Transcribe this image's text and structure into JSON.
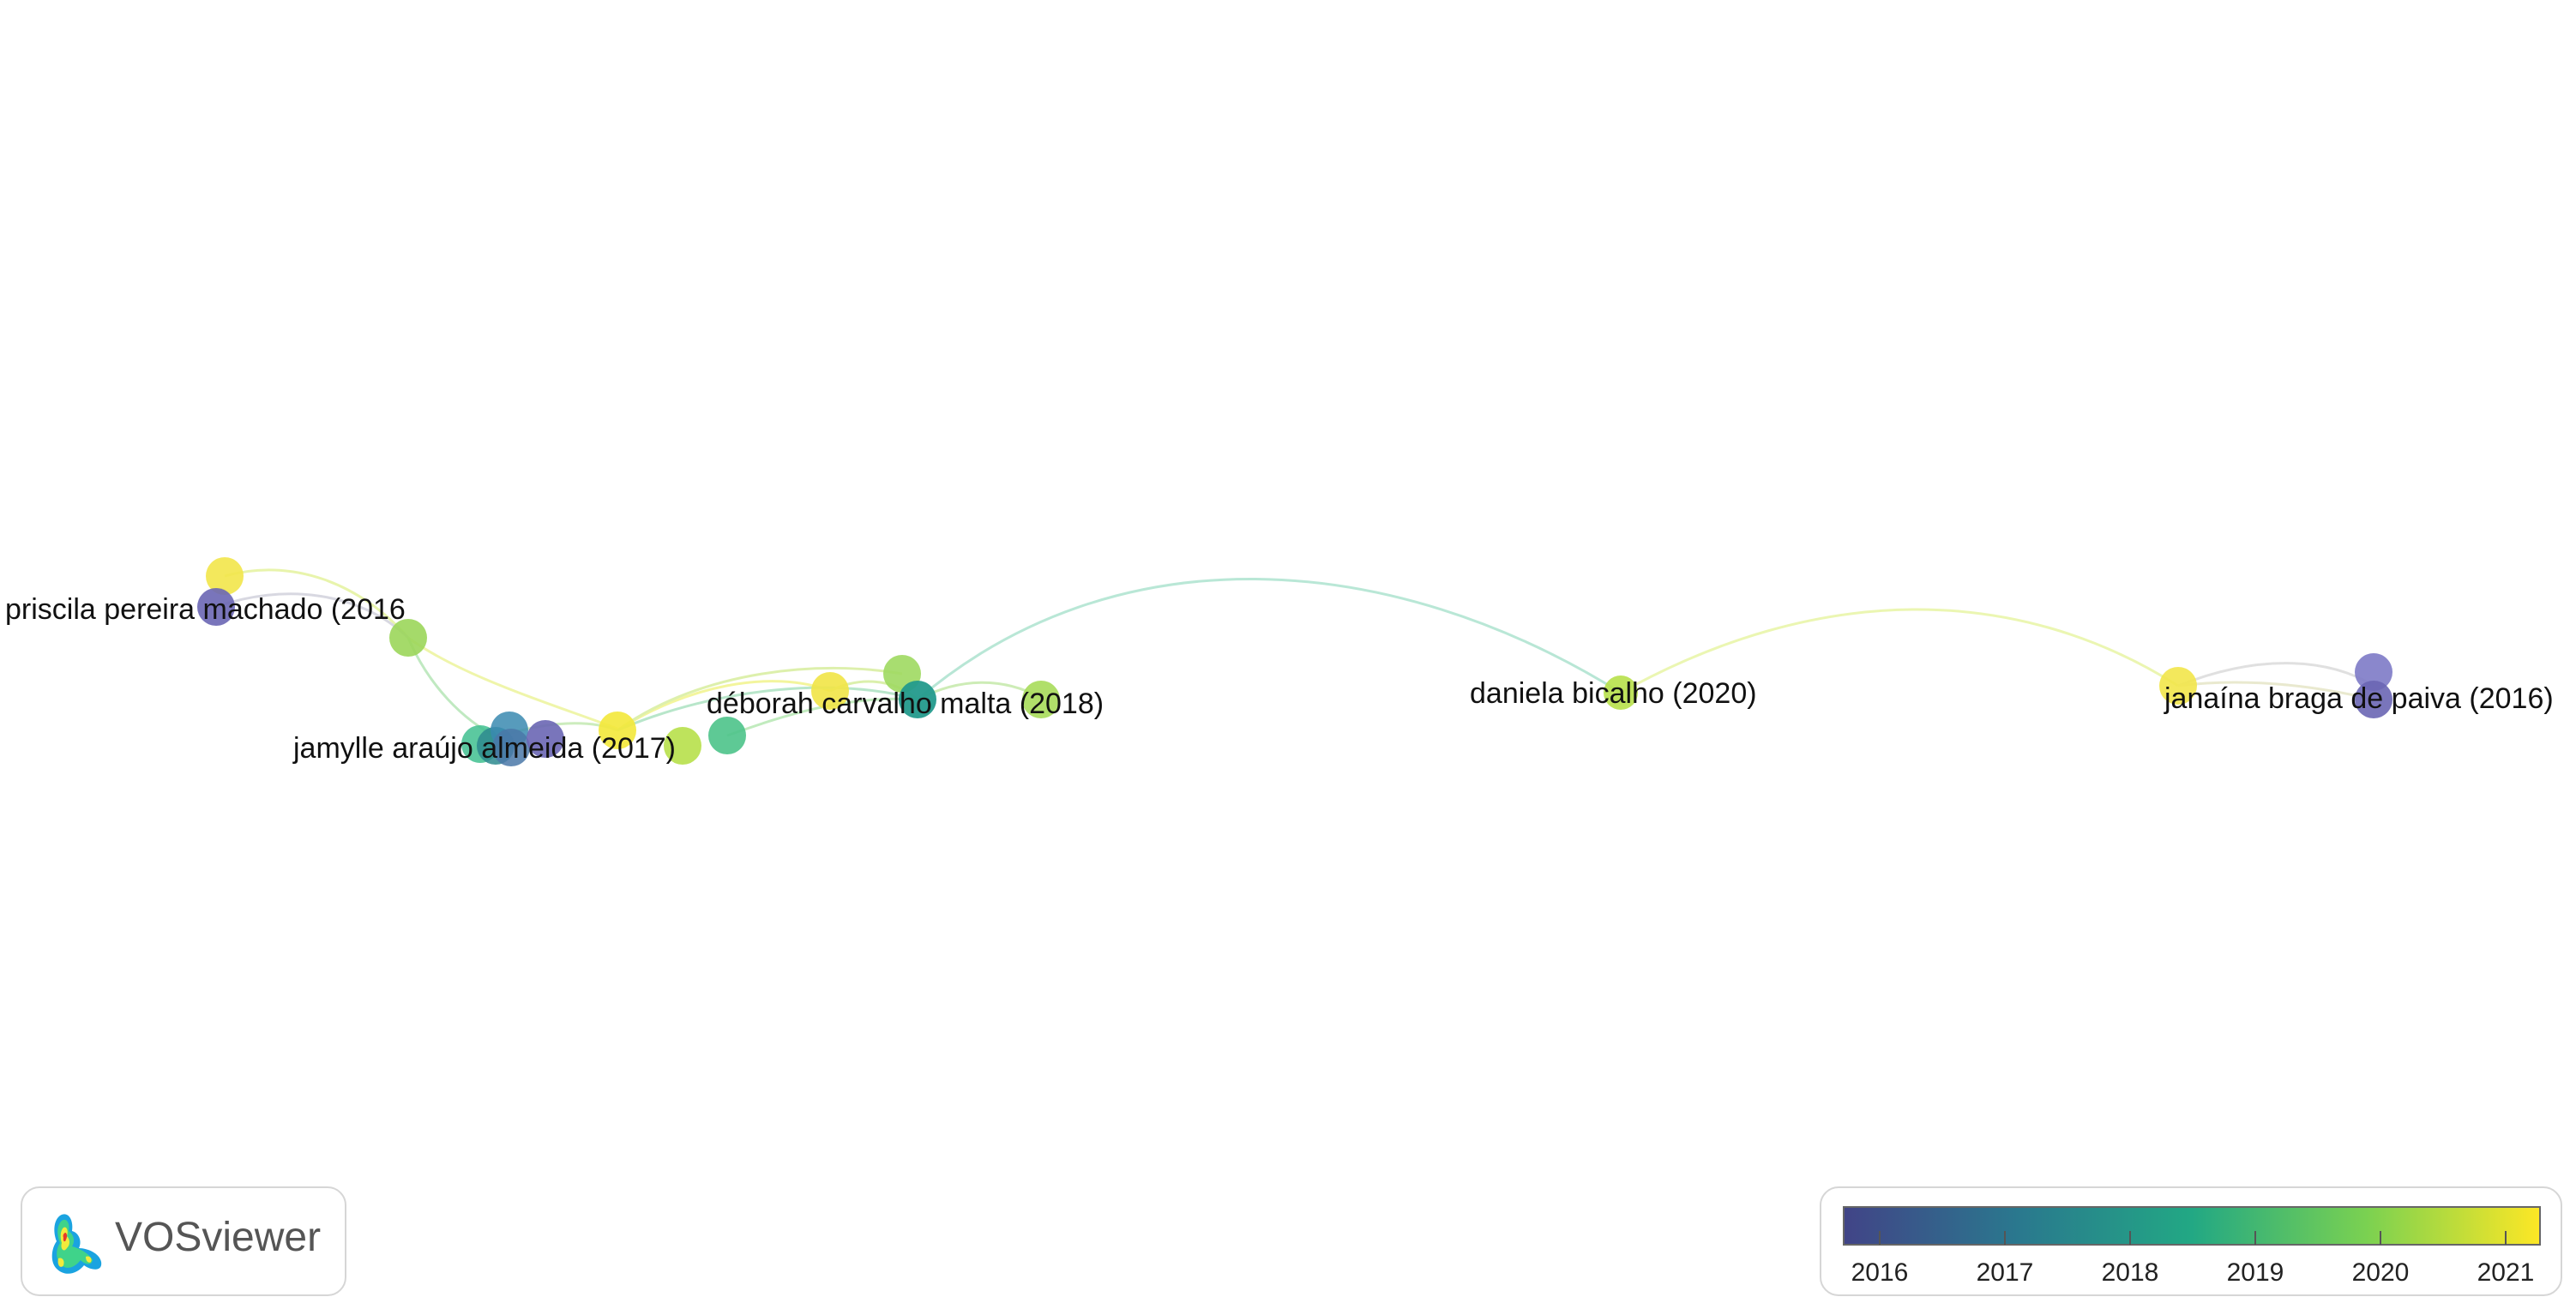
{
  "network": {
    "labels": [
      {
        "id": "n-priscila",
        "text": "priscila pereira machado (2016"
      },
      {
        "id": "n-deborah",
        "text": "déborah carvalho malta (2018)"
      },
      {
        "id": "n-jamylle",
        "text": "jamylle araújo almeida (2017)"
      },
      {
        "id": "n-daniela",
        "text": "daniela bicalho (2020)"
      },
      {
        "id": "n-janaina",
        "text": "janaína braga de paiva (2016)"
      }
    ]
  },
  "logo": {
    "text": "VOSviewer"
  },
  "legend": {
    "ticks": [
      "2016",
      "2017",
      "2018",
      "2019",
      "2020",
      "2021"
    ],
    "gradient": [
      "#414487",
      "#2a788e",
      "#22a884",
      "#7ad151",
      "#fde725"
    ]
  }
}
